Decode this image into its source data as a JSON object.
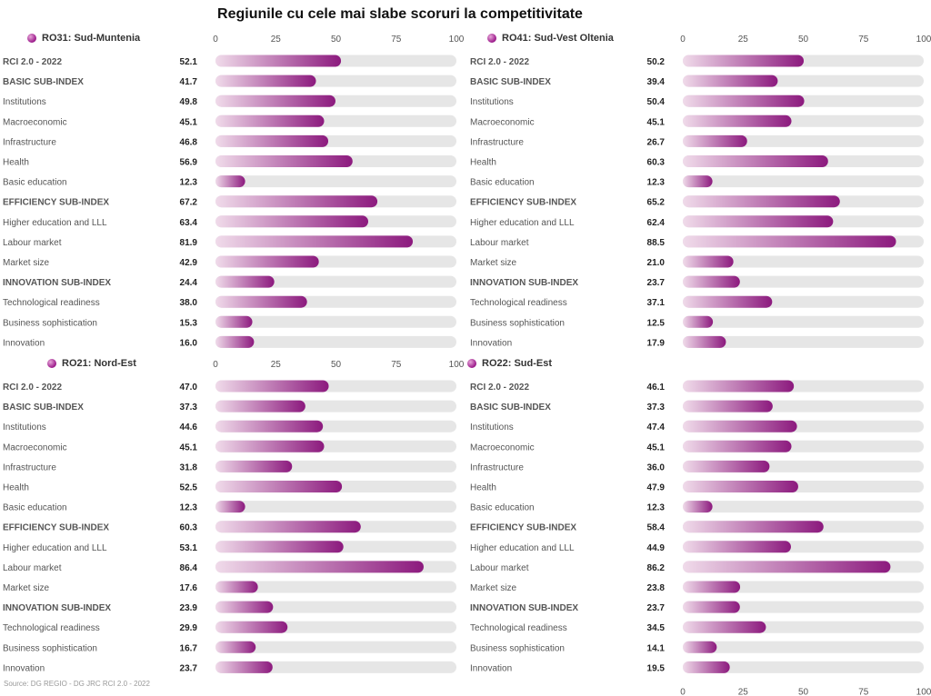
{
  "title": "Regiunile cu cele mai slabe scoruri la competitivitate",
  "source": "Source: DG REGIO - DG JRC RCI 2.0 - 2022",
  "colors": {
    "bar_start": "#f0dbea",
    "bar_end": "#8c1a7e",
    "track": "#e6e6e6",
    "bold_label": "#555555",
    "label": "#555555",
    "value": "#222222",
    "tick": "#555555"
  },
  "chart_data": [
    {
      "type": "bar",
      "title": "RO31: Sud-Muntenia",
      "xlim": [
        0,
        100
      ],
      "ticks": [
        "0",
        "25",
        "50",
        "75",
        "100"
      ],
      "categories": [
        "RCI 2.0 - 2022",
        "BASIC SUB-INDEX",
        "Institutions",
        "Macroeconomic",
        "Infrastructure",
        "Health",
        "Basic education",
        "EFFICIENCY SUB-INDEX",
        "Higher education and LLL",
        "Labour market",
        "Market size",
        "INNOVATION SUB-INDEX",
        "Technological readiness",
        "Business sophistication",
        "Innovation"
      ],
      "bold": [
        true,
        true,
        false,
        false,
        false,
        false,
        false,
        true,
        false,
        false,
        false,
        true,
        false,
        false,
        false
      ],
      "values": [
        52.1,
        41.7,
        49.8,
        45.1,
        46.8,
        56.9,
        12.3,
        67.2,
        63.4,
        81.9,
        42.9,
        24.4,
        38.0,
        15.3,
        16.0
      ],
      "labels": [
        "52.1",
        "41.7",
        "49.8",
        "45.1",
        "46.8",
        "56.9",
        "12.3",
        "67.2",
        "63.4",
        "81.9",
        "42.9",
        "24.4",
        "38.0",
        "15.3",
        "16.0"
      ]
    },
    {
      "type": "bar",
      "title": "RO41: Sud-Vest Oltenia",
      "xlim": [
        0,
        100
      ],
      "ticks": [
        "0",
        "25",
        "50",
        "75",
        "100"
      ],
      "categories": [
        "RCI 2.0 - 2022",
        "BASIC SUB-INDEX",
        "Institutions",
        "Macroeconomic",
        "Infrastructure",
        "Health",
        "Basic education",
        "EFFICIENCY SUB-INDEX",
        "Higher education and LLL",
        "Labour market",
        "Market size",
        "INNOVATION SUB-INDEX",
        "Technological readiness",
        "Business sophistication",
        "Innovation"
      ],
      "bold": [
        true,
        true,
        false,
        false,
        false,
        false,
        false,
        true,
        false,
        false,
        false,
        true,
        false,
        false,
        false
      ],
      "values": [
        50.2,
        39.4,
        50.4,
        45.1,
        26.7,
        60.3,
        12.3,
        65.2,
        62.4,
        88.5,
        21.0,
        23.7,
        37.1,
        12.5,
        17.9
      ],
      "labels": [
        "50.2",
        "39.4",
        "50.4",
        "45.1",
        "26.7",
        "60.3",
        "12.3",
        "65.2",
        "62.4",
        "88.5",
        "21.0",
        "23.7",
        "37.1",
        "12.5",
        "17.9"
      ]
    },
    {
      "type": "bar",
      "title": "RO21: Nord-Est",
      "xlim": [
        0,
        100
      ],
      "ticks": [
        "0",
        "25",
        "50",
        "75",
        "100"
      ],
      "categories": [
        "RCI 2.0 - 2022",
        "BASIC SUB-INDEX",
        "Institutions",
        "Macroeconomic",
        "Infrastructure",
        "Health",
        "Basic education",
        "EFFICIENCY SUB-INDEX",
        "Higher education and LLL",
        "Labour market",
        "Market size",
        "INNOVATION SUB-INDEX",
        "Technological readiness",
        "Business sophistication",
        "Innovation"
      ],
      "bold": [
        true,
        true,
        false,
        false,
        false,
        false,
        false,
        true,
        false,
        false,
        false,
        true,
        false,
        false,
        false
      ],
      "values": [
        47.0,
        37.3,
        44.6,
        45.1,
        31.8,
        52.5,
        12.3,
        60.3,
        53.1,
        86.4,
        17.6,
        23.9,
        29.9,
        16.7,
        23.7
      ],
      "labels": [
        "47.0",
        "37.3",
        "44.6",
        "45.1",
        "31.8",
        "52.5",
        "12.3",
        "60.3",
        "53.1",
        "86.4",
        "17.6",
        "23.9",
        "29.9",
        "16.7",
        "23.7"
      ]
    },
    {
      "type": "bar",
      "title": "RO22: Sud-Est",
      "xlim": [
        0,
        100
      ],
      "ticks": [
        "0",
        "25",
        "50",
        "75",
        "100"
      ],
      "categories": [
        "RCI 2.0 - 2022",
        "BASIC SUB-INDEX",
        "Institutions",
        "Macroeconomic",
        "Infrastructure",
        "Health",
        "Basic education",
        "EFFICIENCY SUB-INDEX",
        "Higher education and LLL",
        "Labour market",
        "Market size",
        "INNOVATION SUB-INDEX",
        "Technological readiness",
        "Business sophistication",
        "Innovation"
      ],
      "bold": [
        true,
        true,
        false,
        false,
        false,
        false,
        false,
        true,
        false,
        false,
        false,
        true,
        false,
        false,
        false
      ],
      "values": [
        46.1,
        37.3,
        47.4,
        45.1,
        36.0,
        47.9,
        12.3,
        58.4,
        44.9,
        86.2,
        23.8,
        23.7,
        34.5,
        14.1,
        19.5
      ],
      "labels": [
        "46.1",
        "37.3",
        "47.4",
        "45.1",
        "36.0",
        "47.9",
        "12.3",
        "58.4",
        "44.9",
        "86.2",
        "23.8",
        "23.7",
        "34.5",
        "14.1",
        "19.5"
      ]
    }
  ]
}
